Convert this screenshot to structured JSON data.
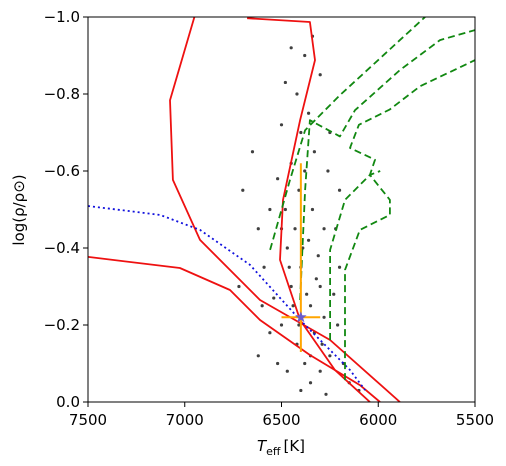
{
  "chart_data": {
    "type": "scatter",
    "xlabel": {
      "symbol": "T",
      "subscript": "eff",
      "unit": "[K]"
    },
    "ylabel": "log(ρ/ρ⊙)",
    "xlim": [
      7500,
      5500
    ],
    "ylim": [
      0,
      -1.0
    ],
    "xticks": [
      7500,
      7000,
      6500,
      6000,
      5500
    ],
    "yticks": [
      {
        "value": -1.0,
        "label": "−1.0"
      },
      {
        "value": -0.8,
        "label": "−0.8"
      },
      {
        "value": -0.6,
        "label": "−0.6"
      },
      {
        "value": -0.4,
        "label": "−0.4"
      },
      {
        "value": -0.2,
        "label": "−0.2"
      },
      {
        "value": 0,
        "label": "0.0"
      }
    ],
    "scatter": {
      "color": "#000000",
      "x": [
        6450,
        6400,
        6350,
        6300,
        6500,
        6420,
        6380,
        6330,
        6280,
        6250,
        6470,
        6430,
        6360,
        6310,
        6540,
        6560,
        6300,
        6350,
        6400,
        6230,
        6210,
        6480,
        6410,
        6340,
        6380,
        6450,
        6330,
        6400,
        6360,
        6420,
        6300,
        6380,
        6340,
        6450,
        6520,
        6590,
        6600,
        6620,
        6650,
        6700,
        6200,
        6180,
        6150,
        6280,
        6260,
        6250,
        6500,
        6480,
        6520,
        6470,
        6440,
        6370,
        6320,
        6390,
        6460,
        6290,
        6410,
        6350,
        6500,
        6560,
        6270,
        6220,
        6200,
        6620,
        6100,
        6720
      ],
      "y": [
        -0.3,
        -0.35,
        -0.25,
        -0.3,
        -0.2,
        -0.15,
        -0.1,
        -0.18,
        -0.22,
        -0.12,
        -0.4,
        -0.45,
        -0.42,
        -0.38,
        -0.27,
        -0.18,
        -0.08,
        -0.05,
        -0.03,
        -0.28,
        -0.2,
        -0.5,
        -0.55,
        -0.5,
        -0.6,
        -0.62,
        -0.65,
        -0.7,
        -0.75,
        -0.8,
        -0.85,
        -0.9,
        -0.95,
        -0.92,
        -0.58,
        -0.35,
        -0.25,
        -0.45,
        -0.65,
        -0.55,
        -0.35,
        -0.1,
        -0.05,
        -0.45,
        -0.6,
        -0.7,
        -0.72,
        -0.83,
        -0.1,
        -0.08,
        -0.25,
        -0.28,
        -0.32,
        -0.4,
        -0.35,
        -0.15,
        -0.2,
        -0.12,
        -0.45,
        -0.5,
        -0.02,
        -0.45,
        -0.55,
        -0.12,
        -0.03,
        -0.3
      ]
    },
    "lines": [
      {
        "color": "#ee1111",
        "style": "solid",
        "x": [
          6950,
          7076,
          7061,
          6921,
          6611,
          6249,
          5888
        ],
        "y": [
          -1.0,
          -0.784,
          -0.577,
          -0.421,
          -0.265,
          -0.161,
          0
        ]
      },
      {
        "color": "#ee1111",
        "style": "solid",
        "x": [
          7500,
          7025,
          6766,
          6611,
          6353,
          6095,
          5991
        ],
        "y": [
          -0.377,
          -0.348,
          -0.291,
          -0.213,
          -0.122,
          -0.044,
          0
        ]
      },
      {
        "color": "#ee1111",
        "style": "solid",
        "x": [
          6678,
          6353,
          6327,
          6404,
          6492,
          6508,
          6404,
          6224,
          6043
        ],
        "y": [
          -0.997,
          -0.987,
          -0.888,
          -0.732,
          -0.525,
          -0.369,
          -0.213,
          -0.083,
          0
        ]
      },
      {
        "color": "#1111dd",
        "style": "dotted",
        "x": [
          7500,
          7128,
          6921,
          6663,
          6404,
          6146,
          6068
        ],
        "y": [
          -0.509,
          -0.486,
          -0.447,
          -0.356,
          -0.213,
          -0.083,
          -0.031
        ]
      },
      {
        "color": "#118811",
        "style": "dashed",
        "x": [
          6559,
          6456,
          6378,
          6198,
          5888,
          5758
        ],
        "y": [
          -0.395,
          -0.577,
          -0.706,
          -0.797,
          -0.94,
          -1.0
        ]
      },
      {
        "color": "#118811",
        "style": "dashed",
        "x": [
          6404,
          6378,
          6353,
          6198,
          6120,
          5888,
          5681,
          5500
        ],
        "y": [
          -0.265,
          -0.55,
          -0.732,
          -0.69,
          -0.758,
          -0.862,
          -0.94,
          -0.966
        ]
      },
      {
        "color": "#118811",
        "style": "dashed",
        "x": [
          6249,
          6249,
          6172,
          6043,
          6017,
          6146,
          6100,
          5940,
          5784,
          5500
        ],
        "y": [
          -0.161,
          -0.395,
          -0.525,
          -0.59,
          -0.629,
          -0.66,
          -0.72,
          -0.76,
          -0.82,
          -0.888
        ]
      },
      {
        "color": "#118811",
        "style": "dashed",
        "x": [
          6172,
          6172,
          6095,
          5940,
          5940,
          6043,
          5990
        ],
        "y": [
          -0.057,
          -0.343,
          -0.447,
          -0.486,
          -0.525,
          -0.59,
          -0.6
        ]
      }
    ],
    "point": {
      "x": 6400,
      "y": -0.22,
      "xerr": 100,
      "yerr_low": 0.09,
      "yerr_high": 0.4,
      "color": "#ffa500",
      "star_color": "#6a5acd"
    }
  }
}
